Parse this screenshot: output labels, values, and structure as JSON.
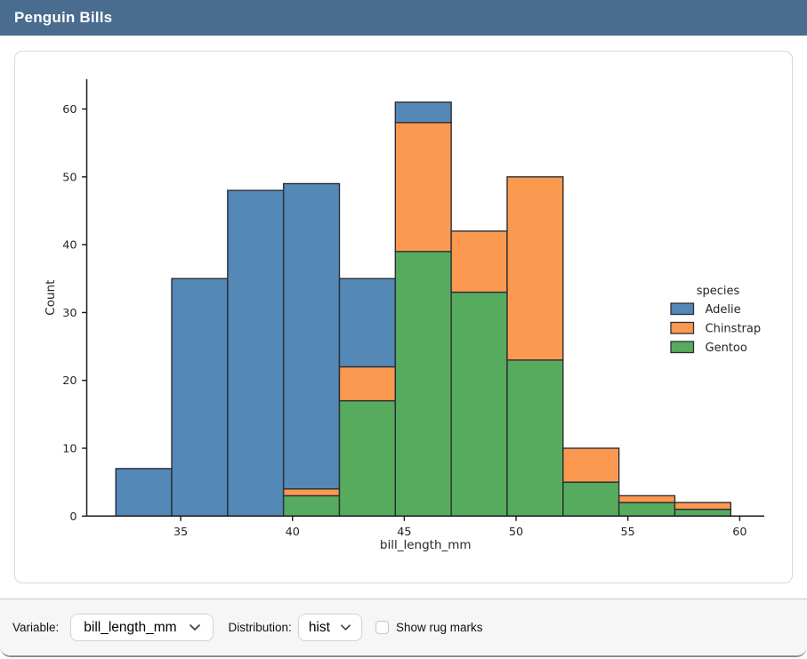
{
  "header": {
    "title": "Penguin Bills",
    "background": "#4a6c8f"
  },
  "controls": {
    "variable_label": "Variable:",
    "variable_value": "bill_length_mm",
    "distribution_label": "Distribution:",
    "distribution_value": "hist",
    "rug_label": "Show rug marks",
    "show_rug_checked": false
  },
  "chart_data": {
    "type": "bar",
    "variant": "stacked-histogram",
    "title": "",
    "xlabel": "bill_length_mm",
    "ylabel": "Count",
    "legend_title": "species",
    "legend_position": "right-inside",
    "grid": false,
    "bin_edges": [
      32.1,
      34.6,
      37.1,
      39.6,
      42.1,
      44.6,
      47.1,
      49.6,
      52.1,
      54.6,
      57.1,
      59.6
    ],
    "x_ticks": [
      35,
      40,
      45,
      50,
      55,
      60
    ],
    "y_ticks": [
      0,
      10,
      20,
      30,
      40,
      50,
      60
    ],
    "xlim": [
      30.8,
      61.1
    ],
    "ylim": [
      0,
      64.4
    ],
    "bar_edge_color": "#2b2f33",
    "text_color": "#262626",
    "series": [
      {
        "name": "Adelie",
        "color": "#5388b7",
        "values": [
          7,
          35,
          48,
          45,
          13,
          3,
          0,
          0,
          0,
          0,
          0
        ]
      },
      {
        "name": "Chinstrap",
        "color": "#fc9950",
        "values": [
          0,
          0,
          0,
          1,
          5,
          19,
          9,
          27,
          5,
          1,
          1
        ]
      },
      {
        "name": "Gentoo",
        "color": "#57ab5f",
        "values": [
          0,
          0,
          0,
          3,
          17,
          39,
          33,
          23,
          5,
          2,
          1
        ]
      }
    ],
    "stack_order_bottom_to_top": [
      "Gentoo",
      "Chinstrap",
      "Adelie"
    ],
    "bin_totals": [
      7,
      35,
      48,
      49,
      35,
      61,
      42,
      50,
      10,
      3,
      2
    ]
  }
}
